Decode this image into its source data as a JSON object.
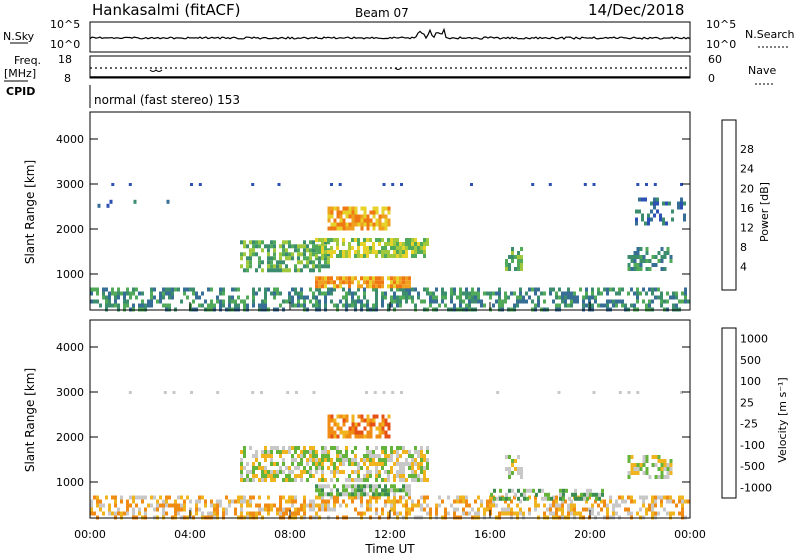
{
  "header": {
    "station": "Hankasalmi (fitACF)",
    "beam": "Beam 07",
    "date": "14/Dec/2018"
  },
  "nsky_panel": {
    "left_label": "N.Sky",
    "left_top": "10^5",
    "left_bottom": "10^0",
    "right_top": "10^5",
    "right_bottom": "10^0",
    "right_label": "N.Search"
  },
  "freq_panel": {
    "label_line1": "Freq.",
    "label_line2": "[MHz]",
    "left_top": "18",
    "left_bottom": "8",
    "right_top": "60",
    "right_bottom": "0",
    "right_label": "Nave"
  },
  "cpid_panel": {
    "label": "CPID",
    "mode": "normal (fast stereo) 153"
  },
  "colors": {
    "velocity_gray": "#c8c8c8",
    "black": "#000000"
  },
  "chart_data": [
    {
      "type": "heatmap",
      "name": "power",
      "ylabel": "Slant Range [km]",
      "y_ticks": [
        "1000",
        "2000",
        "3000",
        "4000"
      ],
      "ylim": [
        200,
        4600
      ],
      "xlim": [
        0,
        24
      ],
      "colorbar": {
        "label": "Power [dB]",
        "tick_labels": [
          "4",
          "8",
          "12",
          "16",
          "20",
          "24",
          "28"
        ],
        "colors": [
          "#1428e6",
          "#2d50b4",
          "#376e96",
          "#3c8c6e",
          "#50aa5a",
          "#a0c83c",
          "#e6d228",
          "#f0a01e",
          "#f07814",
          "#e64614",
          "#d21414"
        ]
      },
      "regions": [
        {
          "t0": 0,
          "t1": 24,
          "r0": 250,
          "r1": 700,
          "level": 3,
          "density": 0.55
        },
        {
          "t0": 0.3,
          "t1": 3.5,
          "r0": 2500,
          "r1": 2650,
          "level": 2,
          "density": 0.15
        },
        {
          "t0": 6,
          "t1": 9.5,
          "r0": 1050,
          "r1": 1750,
          "level": 4,
          "density": 0.6
        },
        {
          "t0": 9,
          "t1": 13.5,
          "r0": 1400,
          "r1": 1800,
          "level": 5,
          "density": 0.7
        },
        {
          "t0": 9,
          "t1": 12.8,
          "r0": 700,
          "r1": 950,
          "level": 7,
          "density": 0.85
        },
        {
          "t0": 9.5,
          "t1": 12,
          "r0": 2000,
          "r1": 2500,
          "level": 7,
          "density": 0.75
        },
        {
          "t0": 16.6,
          "t1": 17.3,
          "r0": 1100,
          "r1": 1600,
          "level": 4,
          "density": 0.6
        },
        {
          "t0": 21.5,
          "t1": 23.3,
          "r0": 1100,
          "r1": 1600,
          "level": 3,
          "density": 0.5
        },
        {
          "t0": 21.8,
          "t1": 23.8,
          "r0": 2100,
          "r1": 2700,
          "level": 2,
          "density": 0.3
        }
      ]
    },
    {
      "type": "heatmap",
      "name": "velocity",
      "ylabel": "Slant Range [km]",
      "y_ticks": [
        "1000",
        "2000",
        "3000",
        "4000"
      ],
      "x_ticks": [
        "00:00",
        "04:00",
        "08:00",
        "12:00",
        "16:00",
        "20:00",
        "00:00"
      ],
      "xlabel": "Time UT",
      "ylim": [
        200,
        4600
      ],
      "xlim": [
        0,
        24
      ],
      "colorbar": {
        "label": "Velocity [m s⁻¹]",
        "tick_labels": [
          "1000",
          "500",
          "100",
          "25",
          "-25",
          "-100",
          "-500",
          "-1000"
        ],
        "colors": [
          "#1e3cc8",
          "#3264aa",
          "#3c8c50",
          "#64b43c",
          "#c8c8c8",
          "#f0b41e",
          "#f08c14",
          "#e65014",
          "#dc1414"
        ]
      },
      "regions": [
        {
          "t0": 0,
          "t1": 24,
          "r0": 250,
          "r1": 700,
          "level": 5,
          "density": 0.5
        },
        {
          "t0": 6,
          "t1": 13.5,
          "r0": 1050,
          "r1": 1800,
          "level": 4,
          "density": 0.65
        },
        {
          "t0": 9,
          "t1": 12.8,
          "r0": 700,
          "r1": 950,
          "level": 3,
          "density": 0.8
        },
        {
          "t0": 9.5,
          "t1": 12,
          "r0": 2000,
          "r1": 2500,
          "level": 6,
          "density": 0.6
        },
        {
          "t0": 16.6,
          "t1": 17.3,
          "r0": 1100,
          "r1": 1600,
          "level": 4,
          "density": 0.6
        },
        {
          "t0": 21.5,
          "t1": 23.3,
          "r0": 1100,
          "r1": 1600,
          "level": 4,
          "density": 0.5
        },
        {
          "t0": 16,
          "t1": 20.5,
          "r0": 650,
          "r1": 850,
          "level": 3,
          "density": 0.5
        }
      ]
    }
  ]
}
